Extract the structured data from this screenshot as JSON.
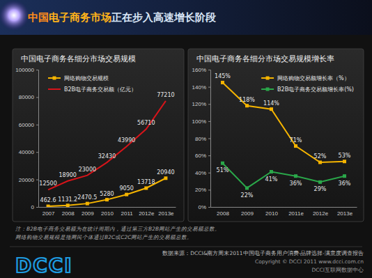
{
  "page": {
    "title": [
      "中国",
      "电子商务市场",
      "正在步入高速增长阶段"
    ],
    "notes": [
      "注：B2B电子商务交易额为在统计周期内，通过第三方B2B网站产生的交易额总数。",
      "网络购物交易规模是指网民个体通过B2C或C2C网站产生的交易额总数。"
    ],
    "source": "数据来源：DCCI&南方周末2011中国电子商务用户消费-品牌选择-满意度调查报告",
    "copyright": "Copyright © DCCI 2011 www.dcci.com.cn",
    "org": "DCCI互联网数据中心",
    "logo": "DCCI"
  },
  "chart_data": [
    {
      "type": "line",
      "title": "中国电子商务各细分市场交易规模",
      "categories": [
        "2007",
        "2008",
        "2009",
        "2010",
        "2011",
        "2012e",
        "2013e"
      ],
      "series": [
        {
          "name": "网络购物交易规模",
          "color": "#f5b400",
          "marker": "square",
          "values": [
            462.6,
            1131.2,
            2470.5,
            5280,
            9050,
            13718,
            20940
          ]
        },
        {
          "name": "B2B电子商务交易额（亿元）",
          "color": "#d7141a",
          "marker": "none",
          "values": [
            12500,
            18900,
            23000,
            32430,
            43990,
            56710,
            77210
          ]
        }
      ],
      "ylim": [
        0,
        100000
      ],
      "yticks": [
        0,
        20000,
        40000,
        60000,
        80000,
        100000
      ],
      "grid": false,
      "legend": "upper left",
      "data_labels": true
    },
    {
      "type": "line",
      "title": "中国电子商务各细分市场交易规模增长率",
      "categories": [
        "2008",
        "2009",
        "2010",
        "2011e",
        "2012e",
        "2013e"
      ],
      "series": [
        {
          "name": "网络购物交易额增长率（%）",
          "color": "#f5b400",
          "marker": "square",
          "values": [
            145,
            118,
            114,
            71,
            52,
            53
          ],
          "value_labels": [
            "145%",
            "118%",
            "114%",
            "71%",
            "52%",
            "53%"
          ]
        },
        {
          "name": "B2B电子商务交易额增长率(%)",
          "color": "#2aa84a",
          "marker": "square",
          "values": [
            51,
            22,
            41,
            36,
            29,
            36
          ],
          "value_labels": [
            "51%",
            "22%",
            "41%",
            "36%",
            "29%",
            "36%"
          ]
        }
      ],
      "ylim": [
        0,
        160
      ],
      "yticks": [
        {
          "value": 0,
          "label": "0%"
        },
        {
          "value": 20,
          "label": "20%"
        },
        {
          "value": 40,
          "label": "40%"
        },
        {
          "value": 60,
          "label": "60%"
        },
        {
          "value": 80,
          "label": "80%"
        },
        {
          "value": 100,
          "label": "100%"
        },
        {
          "value": 120,
          "label": "120%"
        },
        {
          "value": 140,
          "label": "140%"
        },
        {
          "value": 160,
          "label": "160%"
        }
      ],
      "grid": false,
      "legend": "upper right",
      "data_labels": true
    }
  ]
}
